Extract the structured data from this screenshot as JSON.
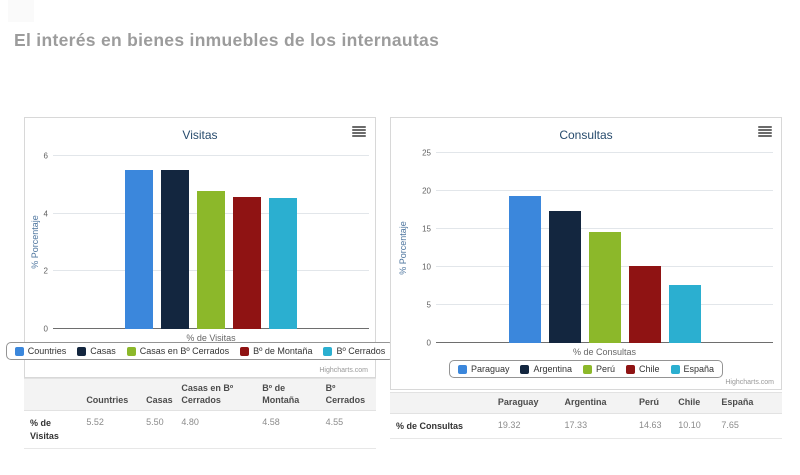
{
  "page": {
    "title": "El interés en bienes inmuebles de los internautas"
  },
  "colors": {
    "page_title": "#9c9c9c",
    "chart_title": "#274b6d",
    "axis_title": "#4d759e",
    "tick_label": "#606060",
    "series_palette": [
      "#3b87dc",
      "#13263f",
      "#8cb82a",
      "#8f1313",
      "#2bafd0"
    ]
  },
  "chart_data": [
    {
      "type": "bar",
      "title": "Visitas",
      "categories": [
        "Countries",
        "Casas",
        "Casas en Bº Cerrados",
        "Bº de Montaña",
        "Bº Cerrados"
      ],
      "values": [
        5.52,
        5.5,
        4.8,
        4.58,
        4.55
      ],
      "colors": [
        "#3b87dc",
        "#13263f",
        "#8cb82a",
        "#8f1313",
        "#2bafd0"
      ],
      "xlabel": "% de Visitas",
      "ylabel": "% Porcentaje",
      "ylim": [
        0,
        6
      ],
      "yticks": [
        0,
        2,
        4,
        6
      ],
      "grid": true,
      "legend_position": "bottom",
      "menu_icon": "hamburger-icon",
      "credits": "Highcharts.com",
      "table": {
        "row_label": "% de Visitas",
        "values": [
          "5.52",
          "5.50",
          "4.80",
          "4.58",
          "4.55"
        ]
      }
    },
    {
      "type": "bar",
      "title": "Consultas",
      "categories": [
        "Paraguay",
        "Argentina",
        "Perú",
        "Chile",
        "España"
      ],
      "values": [
        19.32,
        17.33,
        14.63,
        10.1,
        7.65
      ],
      "colors": [
        "#3b87dc",
        "#13263f",
        "#8cb82a",
        "#8f1313",
        "#2bafd0"
      ],
      "xlabel": "% de Consultas",
      "ylabel": "% Porcentaje",
      "ylim": [
        0,
        25
      ],
      "yticks": [
        0,
        5,
        10,
        15,
        20,
        25
      ],
      "grid": true,
      "legend_position": "bottom",
      "menu_icon": "hamburger-icon",
      "credits": "Highcharts.com",
      "table": {
        "row_label": "% de Consultas",
        "values": [
          "19.32",
          "17.33",
          "14.63",
          "10.10",
          "7.65"
        ]
      }
    }
  ]
}
